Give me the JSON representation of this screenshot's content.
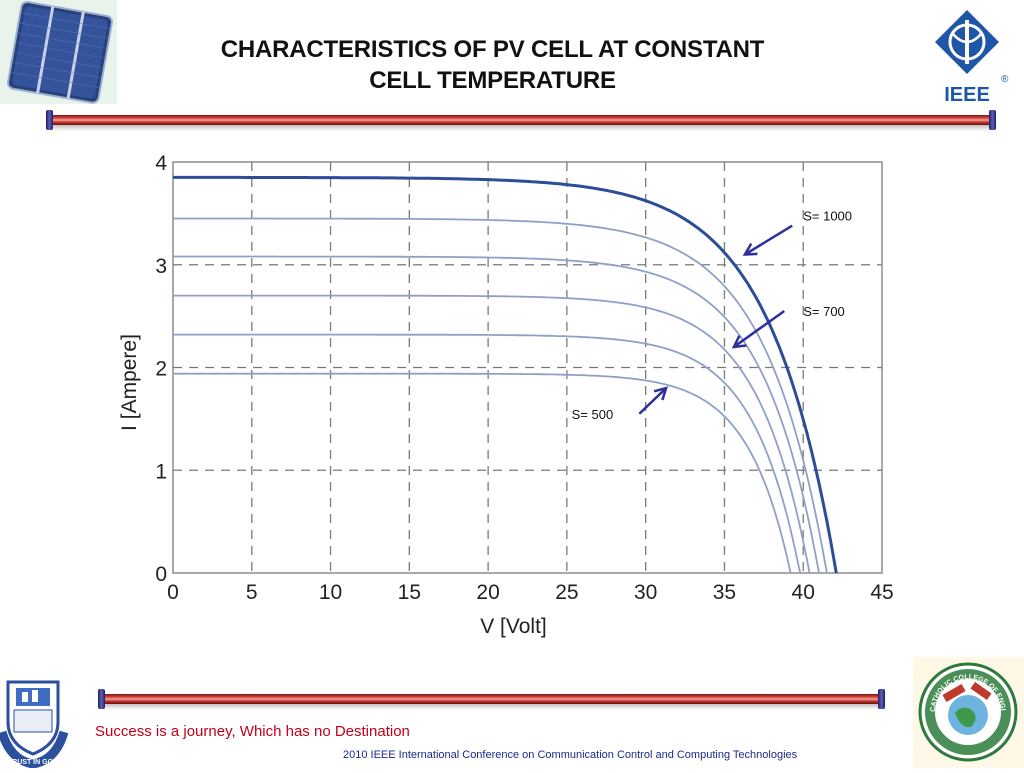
{
  "slide": {
    "title_line1": "CHARACTERISTICS OF PV CELL AT CONSTANT",
    "title_line2": "CELL TEMPERATURE",
    "tagline": "Success is a journey, Which has no Destination",
    "footer": "2010 IEEE International Conference on Communication Control and Computing Technologies",
    "ieee_logo_text": "IEEE",
    "ieee_registered": "®",
    "psna_logo_text": "TRUST IN GOD",
    "catholic_logo_text": "CATHOLIC COLLEGE OF ENGINEERING",
    "colors": {
      "title": "#111111",
      "tagline": "#c0001a",
      "footer": "#1a2a8a",
      "rod": "#d9433c",
      "curve_main": "#2d4d99",
      "curve": "#8fa0c8",
      "arrow": "#2f2f9c"
    }
  },
  "chart_data": {
    "type": "line",
    "xlabel": "V [Volt]",
    "ylabel": "I [Ampere]",
    "xlim": [
      0,
      45
    ],
    "ylim": [
      0,
      4
    ],
    "xticks": [
      0,
      5,
      10,
      15,
      20,
      25,
      30,
      35,
      40,
      45
    ],
    "yticks": [
      0,
      1,
      2,
      3,
      4
    ],
    "grid": true,
    "grid_style": "dashed",
    "series": [
      {
        "isc": 3.85,
        "voc": 42.1,
        "knee": 25.0,
        "emphasis": true
      },
      {
        "isc": 3.45,
        "voc": 41.5,
        "knee": 25.8
      },
      {
        "isc": 3.08,
        "voc": 41.0,
        "knee": 26.5
      },
      {
        "isc": 2.7,
        "voc": 40.4,
        "knee": 27.2
      },
      {
        "isc": 2.32,
        "voc": 39.8,
        "knee": 27.8
      },
      {
        "isc": 1.94,
        "voc": 39.2,
        "knee": 28.3
      }
    ],
    "annotations": [
      {
        "text": "S= 1000",
        "label_x": 40.0,
        "label_y": 3.43,
        "arrow_from": [
          39.3,
          3.38
        ],
        "arrow_to": [
          36.3,
          3.1
        ]
      },
      {
        "text": "S= 700",
        "label_x": 40.0,
        "label_y": 2.5,
        "arrow_from": [
          38.8,
          2.55
        ],
        "arrow_to": [
          35.6,
          2.2
        ]
      },
      {
        "text": "S= 500",
        "label_x": 25.3,
        "label_y": 1.5,
        "arrow_from": [
          29.6,
          1.55
        ],
        "arrow_to": [
          31.3,
          1.8
        ]
      }
    ]
  }
}
